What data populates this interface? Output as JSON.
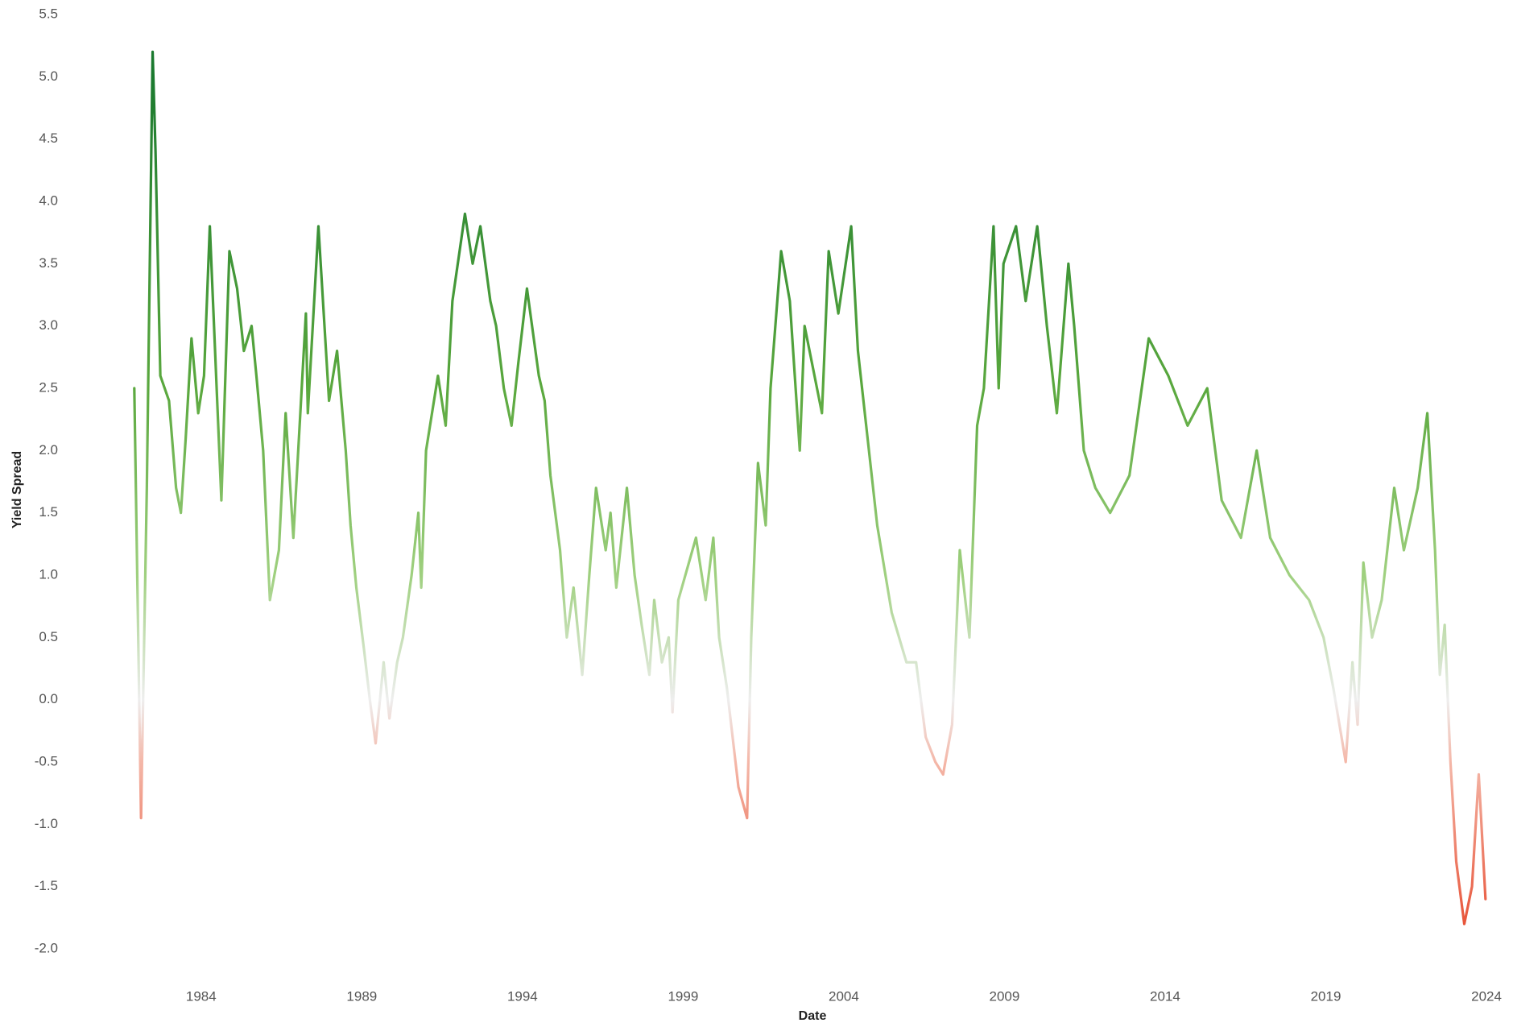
{
  "chart_data": {
    "type": "line",
    "x_label": "Date",
    "y_label": "Yield Spread",
    "xlim": [
      1981.8,
      2024.3
    ],
    "xticks": [
      1984,
      1989,
      1994,
      1999,
      2004,
      2009,
      2014,
      2019,
      2024
    ],
    "ylim": [
      -2.0,
      5.5
    ],
    "yticks": [
      {
        "value": -2,
        "label": "-2.0"
      },
      -1.5,
      {
        "value": -1,
        "label": "-1.0"
      },
      -0.5,
      {
        "value": 0,
        "label": "0.0"
      },
      0.5,
      {
        "value": 1,
        "label": "1.0"
      },
      1.5,
      {
        "value": 2,
        "label": "2.0"
      },
      2.5,
      {
        "value": 3,
        "label": "3.0"
      },
      3.5,
      {
        "value": 4,
        "label": "4.0"
      },
      4.5,
      {
        "value": 5,
        "label": "5.0"
      },
      5.5
    ],
    "grid": false,
    "color_stops": [
      {
        "value": 5.0,
        "color": "#1b7a2f"
      },
      {
        "value": 2.5,
        "color": "#5aa83e"
      },
      {
        "value": 1.0,
        "color": "#9fd07f"
      },
      {
        "value": 0.0,
        "color": "#eeeeee"
      },
      {
        "value": -0.5,
        "color": "#f4b7a8"
      },
      {
        "value": -1.8,
        "color": "#e8553a"
      }
    ],
    "x": [
      1981.92,
      1982.13,
      1982.31,
      1982.49,
      1982.58,
      1982.73,
      1983.0,
      1983.22,
      1983.37,
      1983.52,
      1983.7,
      1983.91,
      1984.09,
      1984.27,
      1984.63,
      1984.88,
      1985.12,
      1985.33,
      1985.57,
      1985.72,
      1985.93,
      1986.14,
      1986.42,
      1986.63,
      1986.87,
      1987.26,
      1987.32,
      1987.65,
      1987.98,
      1988.23,
      1988.5,
      1988.65,
      1988.83,
      1989.07,
      1989.25,
      1989.43,
      1989.68,
      1989.86,
      1990.1,
      1990.28,
      1990.55,
      1990.76,
      1990.85,
      1991.0,
      1991.37,
      1991.61,
      1991.82,
      1992.21,
      1992.45,
      1992.69,
      1993.0,
      1993.18,
      1993.42,
      1993.66,
      1993.87,
      1994.14,
      1994.51,
      1994.69,
      1994.87,
      1995.17,
      1995.38,
      1995.59,
      1995.86,
      1996.08,
      1996.29,
      1996.59,
      1996.74,
      1996.92,
      1997.25,
      1997.49,
      1997.71,
      1997.95,
      1998.1,
      1998.34,
      1998.55,
      1998.67,
      1998.85,
      1999.4,
      1999.7,
      1999.94,
      2000.12,
      2000.36,
      2000.54,
      2000.72,
      2000.99,
      2001.12,
      2001.33,
      2001.57,
      2001.72,
      2002.05,
      2002.32,
      2002.63,
      2002.78,
      2003.32,
      2003.53,
      2003.83,
      2004.23,
      2004.44,
      2004.74,
      2005.04,
      2005.49,
      2005.95,
      2006.25,
      2006.55,
      2006.85,
      2007.09,
      2007.37,
      2007.46,
      2007.61,
      2007.91,
      2008.15,
      2008.36,
      2008.66,
      2008.82,
      2008.97,
      2009.36,
      2009.66,
      2010.02,
      2010.32,
      2010.63,
      2010.99,
      2011.17,
      2011.47,
      2011.83,
      2012.29,
      2012.89,
      2013.49,
      2014.1,
      2014.7,
      2015.31,
      2015.76,
      2016.36,
      2016.85,
      2017.27,
      2017.87,
      2018.48,
      2018.93,
      2019.23,
      2019.62,
      2019.83,
      2019.99,
      2020.17,
      2020.44,
      2020.74,
      2021.13,
      2021.43,
      2021.86,
      2022.16,
      2022.4,
      2022.55,
      2022.7,
      2022.88,
      2023.06,
      2023.31,
      2023.55,
      2023.76,
      2023.97
    ],
    "values": [
      2.5,
      -0.95,
      1.7,
      5.2,
      4.4,
      2.6,
      2.4,
      1.7,
      1.5,
      2.1,
      2.9,
      2.3,
      2.6,
      3.8,
      1.6,
      3.6,
      3.3,
      2.8,
      3.0,
      2.6,
      2.0,
      0.8,
      1.2,
      2.3,
      1.3,
      3.1,
      2.3,
      3.8,
      2.4,
      2.8,
      2.0,
      1.4,
      0.9,
      0.4,
      0.0,
      -0.35,
      0.3,
      -0.15,
      0.3,
      0.5,
      1.0,
      1.5,
      0.9,
      2.0,
      2.6,
      2.2,
      3.2,
      3.9,
      3.5,
      3.8,
      3.2,
      3.0,
      2.5,
      2.2,
      2.7,
      3.3,
      2.6,
      2.4,
      1.8,
      1.2,
      0.5,
      0.9,
      0.2,
      1.0,
      1.7,
      1.2,
      1.5,
      0.9,
      1.7,
      1.0,
      0.6,
      0.2,
      0.8,
      0.3,
      0.5,
      -0.1,
      0.8,
      1.3,
      0.8,
      1.3,
      0.5,
      0.1,
      -0.3,
      -0.7,
      -0.95,
      0.5,
      1.9,
      1.4,
      2.5,
      3.6,
      3.2,
      2.0,
      3.0,
      2.3,
      3.6,
      3.1,
      3.8,
      2.8,
      2.1,
      1.4,
      0.7,
      0.3,
      0.3,
      -0.3,
      -0.5,
      -0.6,
      -0.2,
      0.3,
      1.2,
      0.5,
      2.2,
      2.5,
      3.8,
      2.5,
      3.5,
      3.8,
      3.2,
      3.8,
      3.0,
      2.3,
      3.5,
      3.0,
      2.0,
      1.7,
      1.5,
      1.8,
      2.9,
      2.6,
      2.2,
      2.5,
      1.6,
      1.3,
      2.0,
      1.3,
      1.0,
      0.8,
      0.5,
      0.1,
      -0.5,
      0.3,
      -0.2,
      1.1,
      0.5,
      0.8,
      1.7,
      1.2,
      1.7,
      2.3,
      1.2,
      0.2,
      0.6,
      -0.5,
      -1.3,
      -1.8,
      -1.5,
      -0.6,
      -1.6
    ]
  }
}
